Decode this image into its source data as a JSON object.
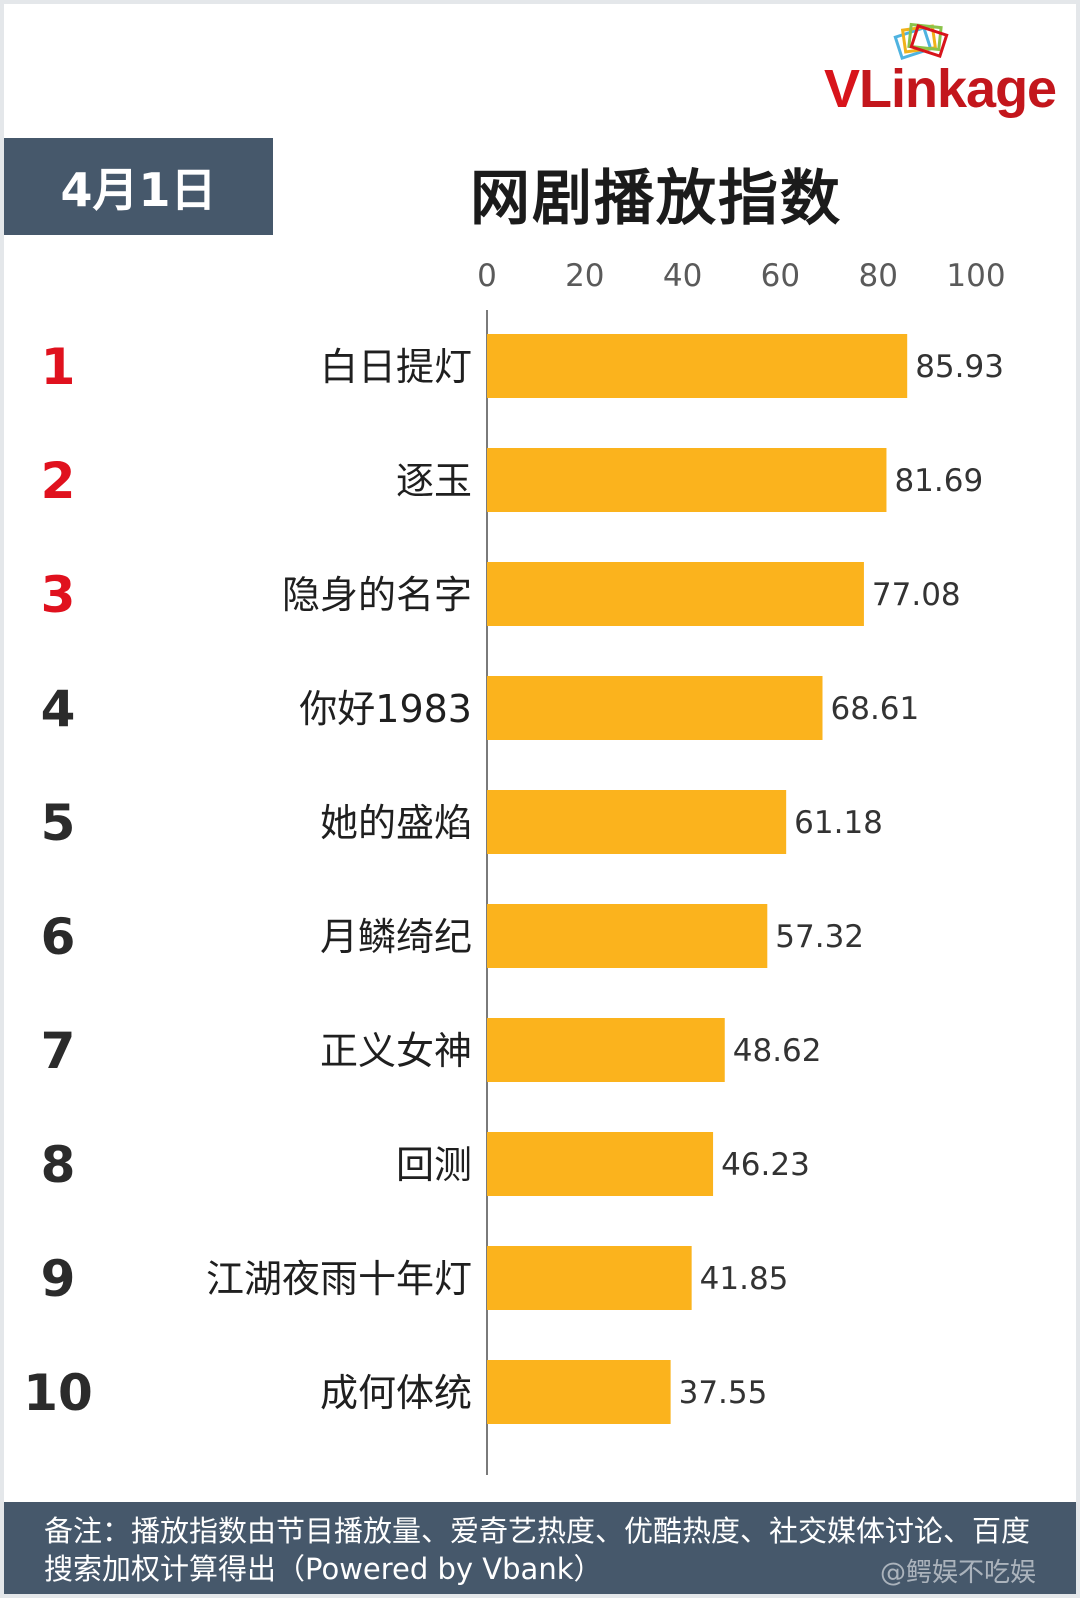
{
  "logo": {
    "v": "V",
    "rest": "Linkage"
  },
  "header": {
    "date": "4月1日",
    "title": "网剧播放指数"
  },
  "colors": {
    "bar": "#FBB31D",
    "top_rank": "#E0111E",
    "rank": "#2b2b2b",
    "panel": "#46586B"
  },
  "chart_data": {
    "type": "bar",
    "orientation": "horizontal",
    "title": "网剧播放指数",
    "xlim": [
      0,
      100
    ],
    "x_ticks": [
      "0",
      "20",
      "40",
      "60",
      "80",
      "100"
    ],
    "grid": false,
    "ranks": [
      "1",
      "2",
      "3",
      "4",
      "5",
      "6",
      "7",
      "8",
      "9",
      "10"
    ],
    "categories": [
      "白日提灯",
      "逐玉",
      "隐身的名字",
      "你好1983",
      "她的盛焰",
      "月鳞绮纪",
      "正义女神",
      "回测",
      "江湖夜雨十年灯",
      "成何体统"
    ],
    "values": [
      85.93,
      81.69,
      77.08,
      68.61,
      61.18,
      57.32,
      48.62,
      46.23,
      41.85,
      37.55
    ],
    "value_labels": [
      "85.93",
      "81.69",
      "77.08",
      "68.61",
      "61.18",
      "57.32",
      "48.62",
      "46.23",
      "41.85",
      "37.55"
    ]
  },
  "footer": {
    "note": "备注：播放指数由节目播放量、爱奇艺热度、优酷热度、社交媒体讨论、百度搜索加权计算得出（Powered by Vbank）",
    "watermark": "@鳄娱不吃娱"
  }
}
